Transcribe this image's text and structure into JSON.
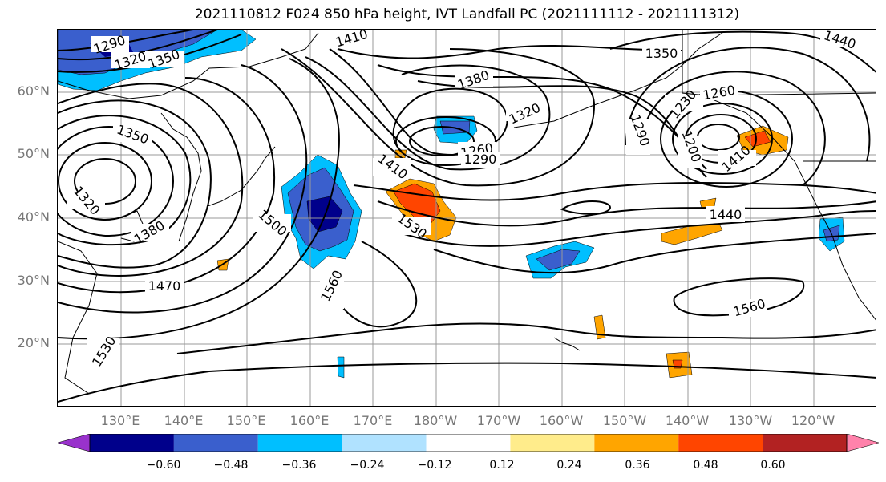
{
  "title": "2021110812 F024 850 hPa height, IVT Landfall PC (2021111112 - 2021111312)",
  "lat_labels": [
    "60°N",
    "50°N",
    "40°N",
    "30°N",
    "20°N"
  ],
  "lon_labels": [
    "130°E",
    "140°E",
    "150°E",
    "160°E",
    "170°E",
    "180°W",
    "170°W",
    "160°W",
    "150°W",
    "140°W",
    "130°W",
    "120°W"
  ],
  "contour_labels": [
    "1290",
    "1320",
    "1350",
    "1410",
    "1380",
    "1350",
    "1320",
    "1260",
    "1290",
    "1290",
    "1230",
    "1260",
    "1200",
    "1410",
    "1440",
    "1440",
    "1350",
    "1320",
    "1380",
    "1470",
    "1500",
    "1530",
    "1410",
    "1560",
    "1560",
    "1530"
  ],
  "colorbar": {
    "ticks": [
      "−0.60",
      "−0.48",
      "−0.36",
      "−0.24",
      "−0.12",
      "0.12",
      "0.24",
      "0.36",
      "0.48",
      "0.60"
    ],
    "colors": [
      "#9932cc",
      "#00008b",
      "#3a5fcd",
      "#00bfff",
      "#b0e2ff",
      "#ffffff",
      "#ffec8b",
      "#ffa500",
      "#ff4500",
      "#b22222",
      "#ff82ab"
    ]
  }
}
